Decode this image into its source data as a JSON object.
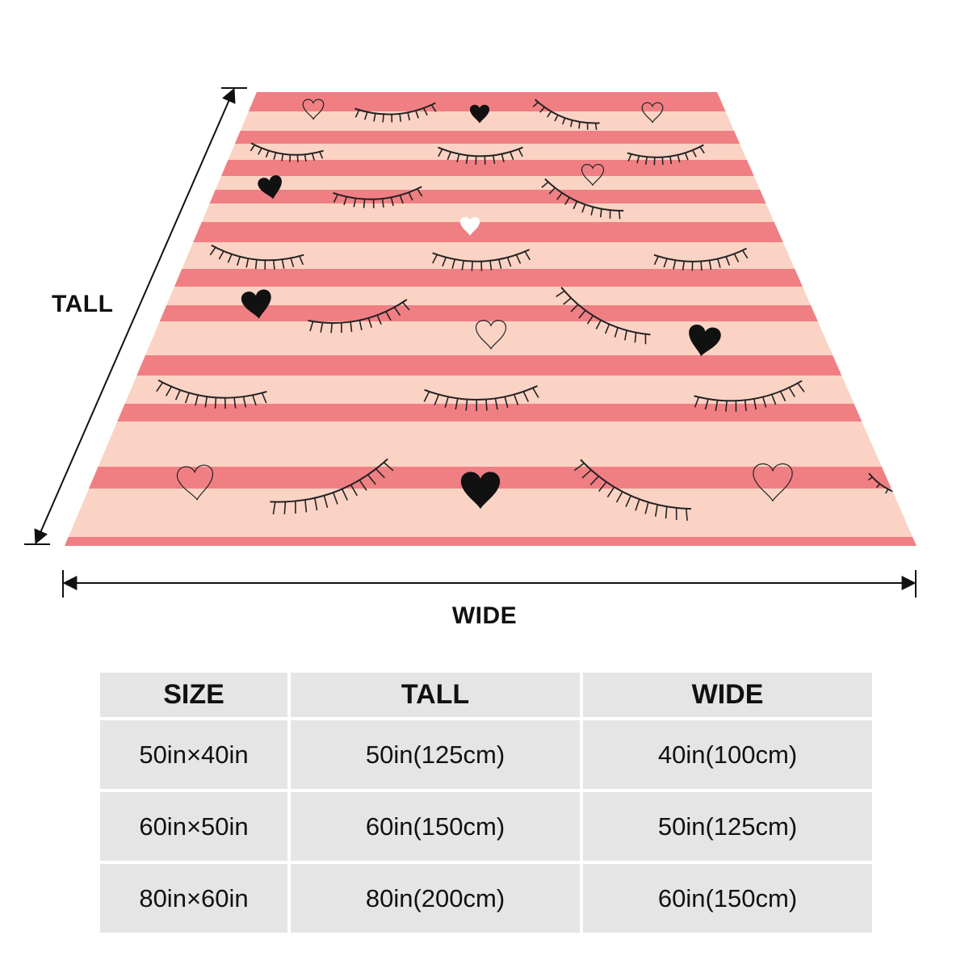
{
  "labels": {
    "tall": "TALL",
    "wide": "WIDE"
  },
  "blanket": {
    "stripe_pink": "#f07f84",
    "stripe_cream": "#fbd3c4",
    "motifs": [
      "closed-eye-lashes-icon",
      "heart-icon"
    ],
    "heart_colors": [
      "#111111",
      "#ffffff"
    ]
  },
  "table": {
    "headers": [
      "SIZE",
      "TALL",
      "WIDE"
    ],
    "rows": [
      [
        "50in×40in",
        "50in(125cm)",
        "40in(100cm)"
      ],
      [
        "60in×50in",
        "60in(150cm)",
        "50in(125cm)"
      ],
      [
        "80in×60in",
        "80in(200cm)",
        "60in(150cm)"
      ]
    ]
  }
}
